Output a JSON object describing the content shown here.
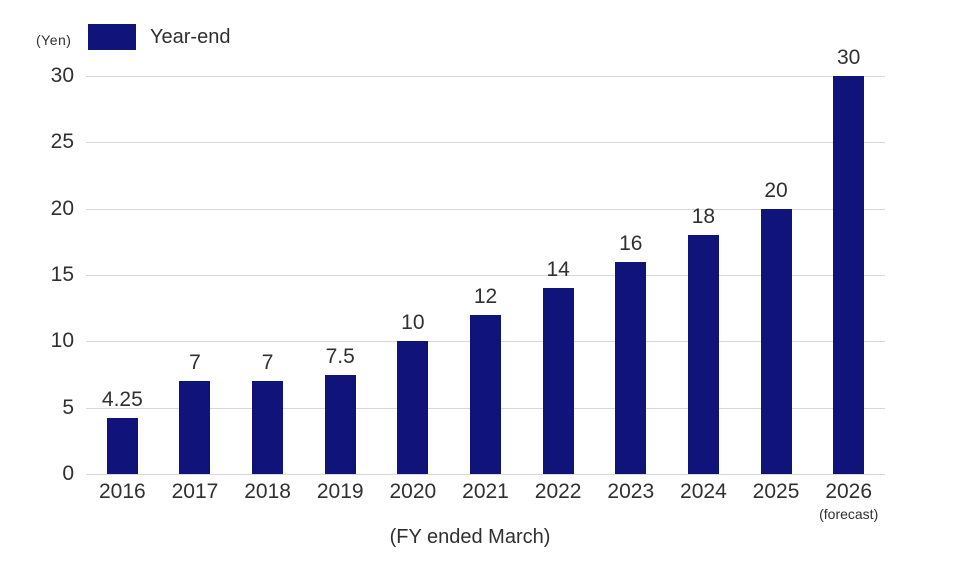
{
  "header": {
    "unit_label": "(Yen)",
    "legend_label": "Year-end"
  },
  "axis": {
    "x_title": "(FY ended March)",
    "forecast_note": "(forecast)"
  },
  "colors": {
    "bar": "#101379",
    "grid": "#d8d8d8",
    "text": "#303030"
  },
  "chart_data": {
    "type": "bar",
    "title": "",
    "unit": "(Yen)",
    "xlabel": "(FY ended March)",
    "ylabel": "(Yen)",
    "categories": [
      "2016",
      "2017",
      "2018",
      "2019",
      "2020",
      "2021",
      "2022",
      "2023",
      "2024",
      "2025",
      "2026"
    ],
    "last_category_note": "(forecast)",
    "values": [
      4.25,
      7,
      7,
      7.5,
      10,
      12,
      14,
      16,
      18,
      20,
      30
    ],
    "value_labels": [
      "4.25",
      "7",
      "7",
      "7.5",
      "10",
      "12",
      "14",
      "16",
      "18",
      "20",
      "30"
    ],
    "ylim": [
      0,
      30
    ],
    "yticks": [
      0,
      5,
      10,
      15,
      20,
      25,
      30
    ],
    "grid": true,
    "legend_position": "top-left",
    "series": [
      {
        "name": "Year-end",
        "color": "#101379"
      }
    ]
  }
}
